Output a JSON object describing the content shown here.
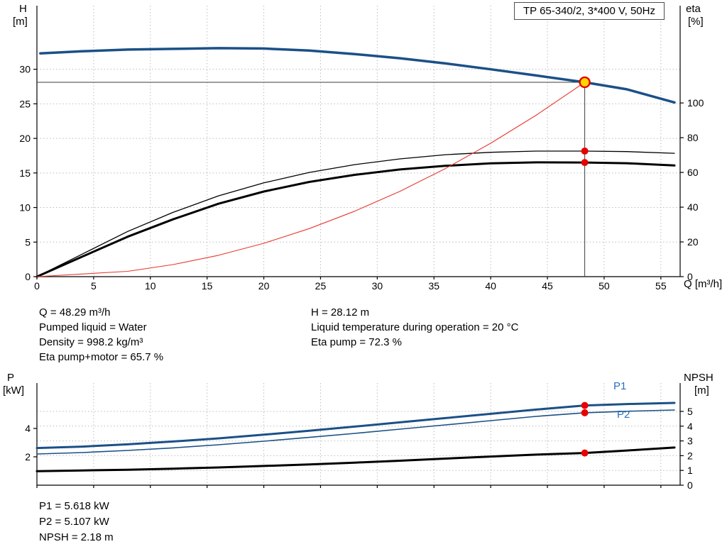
{
  "title_box": {
    "label": "TP 65-340/2, 3*400 V, 50Hz"
  },
  "axis_labels": {
    "h": "H",
    "h_unit": "[m]",
    "eta": "eta",
    "eta_unit": "[%]",
    "q": "Q [m³/h]",
    "p": "P",
    "p_unit": "[kW]",
    "npsh": "NPSH",
    "npsh_unit": "[m]"
  },
  "curve_labels": {
    "p1": "P1",
    "p2": "P2"
  },
  "info_top": {
    "left": [
      "Q = 48.29 m³/h",
      "Pumped liquid = Water",
      "Density = 998.2 kg/m³",
      "Eta pump+motor = 65.7 %"
    ],
    "right": [
      "H = 28.12 m",
      "Liquid temperature during operation = 20 °C",
      "Eta pump = 72.3 %"
    ]
  },
  "info_bottom": [
    "P1 = 5.618 kW",
    "P2 = 5.107 kW",
    "NPSH = 2.18 m"
  ],
  "duty_point": {
    "q": 48.29,
    "h": 28.12,
    "eta_pump": 72.3,
    "eta_pump_motor": 65.7,
    "p1": 5.618,
    "p2": 5.107,
    "npsh": 2.18
  },
  "colors": {
    "grid": "#bcbcbc",
    "axis": "#000000",
    "guide": "#3d3d3d",
    "marker_red": "#e60000",
    "duty_fill": "#ffd600",
    "curve_blue": "#1b5087",
    "label_blue": "#2e6fba",
    "system_red": "#e8392f"
  },
  "chart_data": [
    {
      "type": "line",
      "title": "TP 65-340/2, 3*400 V, 50Hz",
      "x_axis": {
        "label": "Q [m³/h]",
        "min": 0,
        "max": 56.7,
        "ticks": [
          0,
          5,
          10,
          15,
          20,
          25,
          30,
          35,
          40,
          45,
          50,
          55
        ],
        "grid": true,
        "show_tick_labels": true
      },
      "y_left": {
        "label": "H [m]",
        "min": 0,
        "max": 39.2,
        "ticks": [
          0,
          5,
          10,
          15,
          20,
          25,
          30
        ],
        "grid": true
      },
      "y_right": {
        "label": "eta [%]",
        "min": 0,
        "max": 156,
        "ticks": [
          0,
          20,
          40,
          60,
          80,
          100
        ],
        "grid": false
      },
      "series": [
        {
          "name": "head-curve",
          "axis": "left",
          "color": "#1b5087",
          "width": 3.5,
          "points": [
            [
              0.3,
              32.3
            ],
            [
              4,
              32.6
            ],
            [
              8,
              32.85
            ],
            [
              12,
              32.95
            ],
            [
              16,
              33.05
            ],
            [
              20,
              33.0
            ],
            [
              24,
              32.7
            ],
            [
              28,
              32.2
            ],
            [
              32,
              31.6
            ],
            [
              36,
              30.85
            ],
            [
              40,
              30.0
            ],
            [
              44,
              29.1
            ],
            [
              48.29,
              28.12
            ],
            [
              52,
              27.1
            ],
            [
              56.2,
              25.2
            ]
          ]
        },
        {
          "name": "eta-pump-curve",
          "axis": "right",
          "color": "#000000",
          "width": 1.3,
          "points": [
            [
              0,
              0
            ],
            [
              4,
              13
            ],
            [
              8,
              26
            ],
            [
              12,
              37
            ],
            [
              16,
              46.5
            ],
            [
              20,
              54
            ],
            [
              24,
              60
            ],
            [
              28,
              64.5
            ],
            [
              32,
              67.8
            ],
            [
              36,
              70.2
            ],
            [
              40,
              71.6
            ],
            [
              44,
              72.3
            ],
            [
              48.29,
              72.3
            ],
            [
              52,
              72.0
            ],
            [
              56.2,
              71.0
            ]
          ]
        },
        {
          "name": "eta-pump-motor-curve",
          "axis": "right",
          "color": "#000000",
          "width": 3,
          "points": [
            [
              0,
              0
            ],
            [
              4,
              11.5
            ],
            [
              8,
              23
            ],
            [
              12,
              33
            ],
            [
              16,
              42
            ],
            [
              20,
              49
            ],
            [
              24,
              54.5
            ],
            [
              28,
              58.6
            ],
            [
              32,
              61.7
            ],
            [
              36,
              63.8
            ],
            [
              40,
              65.2
            ],
            [
              44,
              65.8
            ],
            [
              48.29,
              65.7
            ],
            [
              52,
              65.3
            ],
            [
              56.2,
              64.0
            ]
          ]
        },
        {
          "name": "system-curve",
          "axis": "left",
          "color": "#e8392f",
          "width": 1.1,
          "points": [
            [
              0,
              0
            ],
            [
              8,
              0.77
            ],
            [
              12,
              1.74
            ],
            [
              16,
              3.09
            ],
            [
              20,
              4.82
            ],
            [
              24,
              6.95
            ],
            [
              28,
              9.46
            ],
            [
              32,
              12.35
            ],
            [
              36,
              15.63
            ],
            [
              40,
              19.3
            ],
            [
              44,
              23.35
            ],
            [
              48.29,
              28.12
            ]
          ]
        }
      ],
      "guides": [
        {
          "type": "h",
          "axis": "left",
          "value": 28.12,
          "from": 0,
          "to": 48.29
        },
        {
          "type": "v",
          "x": 48.29,
          "axis": "left",
          "fromValue": 0,
          "toValue": 28.12
        }
      ],
      "markers": [
        {
          "x": 48.29,
          "value": 28.12,
          "axis": "left",
          "style": "duty-point"
        },
        {
          "x": 48.29,
          "value": 72.3,
          "axis": "right",
          "style": "red-dot"
        },
        {
          "x": 48.29,
          "value": 65.7,
          "axis": "right",
          "style": "red-dot"
        }
      ]
    },
    {
      "type": "line",
      "title": "Power and NPSH curves",
      "x_axis": {
        "label": "Q [m³/h]",
        "min": 0,
        "max": 56.7,
        "ticks": [
          0,
          5,
          10,
          15,
          20,
          25,
          30,
          35,
          40,
          45,
          50,
          55
        ],
        "grid": true,
        "show_tick_labels": false
      },
      "y_left": {
        "label": "P [kW]",
        "min": 0,
        "max": 7.2,
        "ticks": [
          2,
          4
        ],
        "grid": false
      },
      "y_right": {
        "label": "NPSH [m]",
        "min": 0,
        "max": 6.92,
        "ticks": [
          0,
          1,
          2,
          3,
          4,
          5
        ],
        "grid": true
      },
      "series": [
        {
          "name": "p1-curve",
          "axis": "left",
          "color": "#1b5087",
          "width": 3,
          "points": [
            [
              0,
              2.62
            ],
            [
              4,
              2.72
            ],
            [
              8,
              2.88
            ],
            [
              12,
              3.08
            ],
            [
              16,
              3.3
            ],
            [
              20,
              3.56
            ],
            [
              24,
              3.84
            ],
            [
              28,
              4.13
            ],
            [
              32,
              4.43
            ],
            [
              36,
              4.73
            ],
            [
              40,
              5.03
            ],
            [
              44,
              5.33
            ],
            [
              48.29,
              5.618
            ],
            [
              52,
              5.72
            ],
            [
              56.2,
              5.8
            ]
          ]
        },
        {
          "name": "p2-curve",
          "axis": "left",
          "color": "#1b5087",
          "width": 1.6,
          "points": [
            [
              0,
              2.2
            ],
            [
              4,
              2.3
            ],
            [
              8,
              2.45
            ],
            [
              12,
              2.63
            ],
            [
              16,
              2.85
            ],
            [
              20,
              3.1
            ],
            [
              24,
              3.37
            ],
            [
              28,
              3.65
            ],
            [
              32,
              3.95
            ],
            [
              36,
              4.25
            ],
            [
              40,
              4.55
            ],
            [
              44,
              4.85
            ],
            [
              48.29,
              5.107
            ],
            [
              52,
              5.21
            ],
            [
              56.2,
              5.3
            ]
          ]
        },
        {
          "name": "npsh-curve",
          "axis": "right",
          "color": "#000000",
          "width": 3,
          "points": [
            [
              0,
              0.95
            ],
            [
              4,
              1.0
            ],
            [
              8,
              1.05
            ],
            [
              12,
              1.12
            ],
            [
              16,
              1.2
            ],
            [
              20,
              1.3
            ],
            [
              24,
              1.41
            ],
            [
              28,
              1.53
            ],
            [
              32,
              1.66
            ],
            [
              36,
              1.8
            ],
            [
              40,
              1.94
            ],
            [
              44,
              2.07
            ],
            [
              48.29,
              2.18
            ],
            [
              52,
              2.35
            ],
            [
              56.2,
              2.55
            ]
          ]
        }
      ],
      "guides": [],
      "markers": [
        {
          "x": 48.29,
          "value": 5.618,
          "axis": "left",
          "style": "red-dot"
        },
        {
          "x": 48.29,
          "value": 5.107,
          "axis": "left",
          "style": "red-dot"
        },
        {
          "x": 48.29,
          "value": 2.18,
          "axis": "right",
          "style": "red-dot"
        }
      ]
    }
  ]
}
